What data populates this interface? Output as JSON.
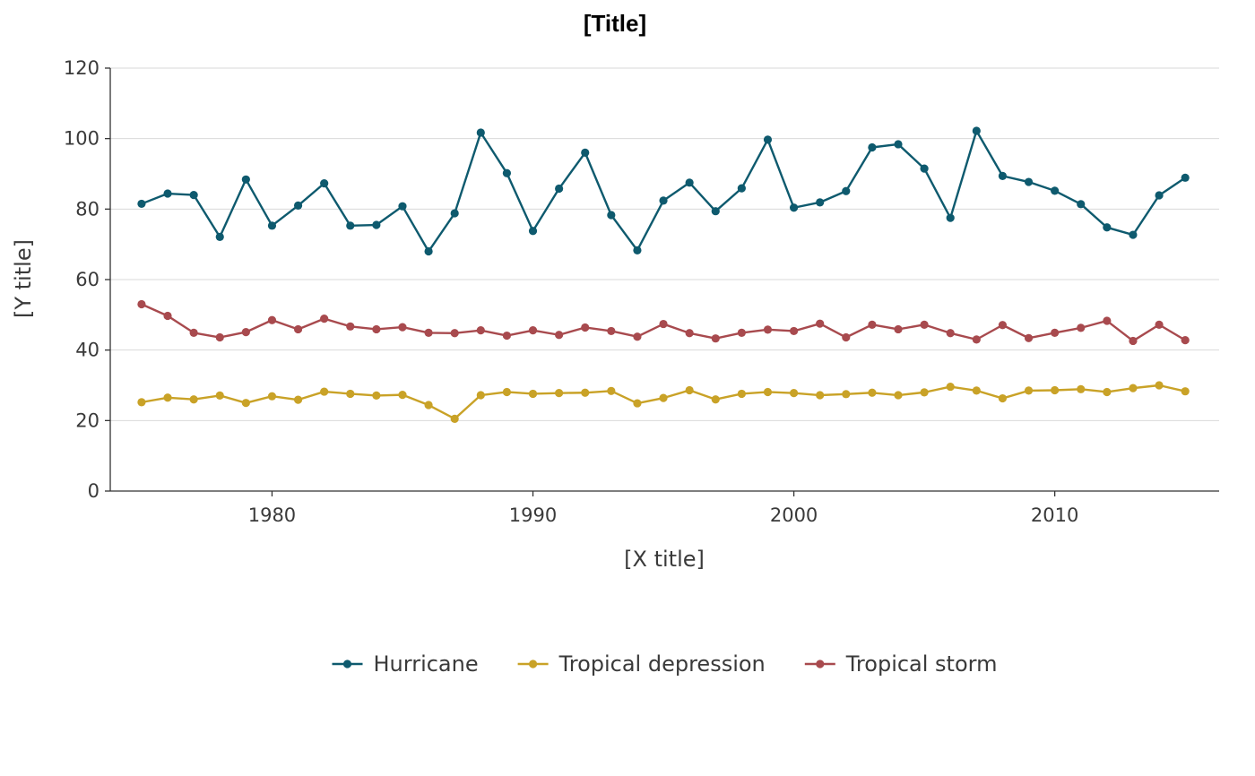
{
  "chart_data": {
    "type": "line",
    "title": "[Title]",
    "xlabel": "[X title]",
    "ylabel": "[Y title]",
    "xlim": [
      1973.8,
      2016.3
    ],
    "ylim": [
      0,
      120
    ],
    "xticks": [
      1980,
      1990,
      2000,
      2010
    ],
    "yticks": [
      0,
      20,
      40,
      60,
      80,
      100,
      120
    ],
    "grid": "horizontal",
    "legend_position": "bottom",
    "x": [
      1975,
      1976,
      1977,
      1978,
      1979,
      1980,
      1981,
      1982,
      1983,
      1984,
      1985,
      1986,
      1987,
      1988,
      1989,
      1990,
      1991,
      1992,
      1993,
      1994,
      1995,
      1996,
      1997,
      1998,
      1999,
      2000,
      2001,
      2002,
      2003,
      2004,
      2005,
      2006,
      2007,
      2008,
      2009,
      2010,
      2011,
      2012,
      2013,
      2014,
      2015
    ],
    "series": [
      {
        "name": "Hurricane",
        "color": "#0e5a6e",
        "values": [
          81.5,
          84.4,
          84.0,
          72.1,
          88.4,
          75.3,
          81.0,
          87.3,
          75.3,
          75.5,
          80.8,
          68.0,
          78.8,
          101.7,
          90.2,
          73.8,
          85.8,
          96.0,
          78.3,
          68.3,
          82.4,
          87.5,
          79.4,
          85.9,
          99.7,
          80.4,
          81.9,
          85.1,
          97.5,
          98.4,
          91.5,
          77.5,
          102.2,
          89.4,
          87.7,
          85.2,
          81.4,
          74.8,
          72.7,
          83.9,
          88.9
        ]
      },
      {
        "name": "Tropical depression",
        "color": "#c9a227",
        "values": [
          25.2,
          26.5,
          26.0,
          27.1,
          25.0,
          26.9,
          25.9,
          28.2,
          27.6,
          27.1,
          27.3,
          24.4,
          20.5,
          27.2,
          28.1,
          27.6,
          27.8,
          27.9,
          28.4,
          24.9,
          26.4,
          28.6,
          26.0,
          27.6,
          28.1,
          27.8,
          27.2,
          27.5,
          27.9,
          27.2,
          28.0,
          29.6,
          28.5,
          26.3,
          28.5,
          28.6,
          28.9,
          28.1,
          29.2,
          30.0,
          28.3
        ]
      },
      {
        "name": "Tropical storm",
        "color": "#a84a4e",
        "values": [
          53.0,
          49.7,
          44.9,
          43.6,
          45.1,
          48.5,
          45.9,
          48.9,
          46.7,
          45.9,
          46.5,
          44.9,
          44.8,
          45.6,
          44.1,
          45.6,
          44.3,
          46.4,
          45.4,
          43.8,
          47.4,
          44.8,
          43.3,
          44.9,
          45.8,
          45.4,
          47.5,
          43.6,
          47.2,
          45.9,
          47.2,
          44.8,
          43.0,
          47.1,
          43.4,
          44.9,
          46.3,
          48.3,
          42.6,
          47.2,
          42.8
        ]
      }
    ]
  }
}
